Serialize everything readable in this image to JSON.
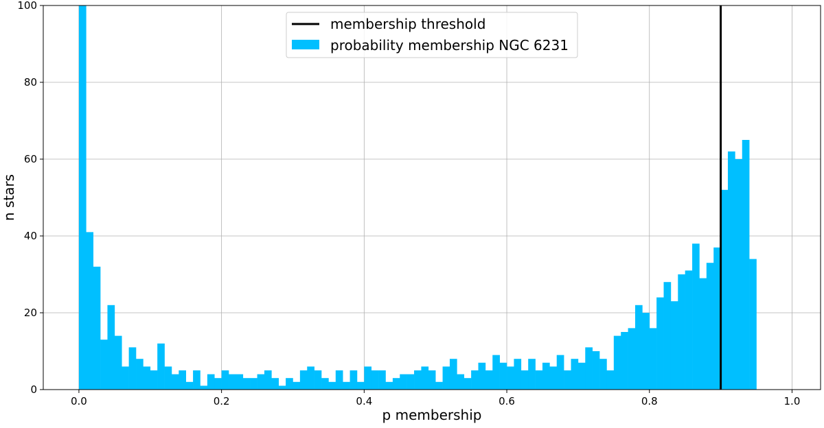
{
  "chart_data": {
    "type": "bar",
    "xlabel": "p membership",
    "ylabel": "n stars",
    "xlim": [
      -0.05,
      1.04
    ],
    "ylim": [
      0,
      100
    ],
    "bin_width": 0.01,
    "grid": true,
    "legend_position": "upper-center",
    "x_ticks": [
      "0.0",
      "0.2",
      "0.4",
      "0.6",
      "0.8",
      "1.0"
    ],
    "y_ticks": [
      "0",
      "20",
      "40",
      "60",
      "80",
      "100"
    ],
    "series": [
      {
        "name": "probability membership NGC 6231",
        "color": "#00bfff",
        "bin_starts": [
          0.0,
          0.01,
          0.02,
          0.03,
          0.04,
          0.05,
          0.06,
          0.07,
          0.08,
          0.09,
          0.1,
          0.11,
          0.12,
          0.13,
          0.14,
          0.15,
          0.16,
          0.17,
          0.18,
          0.19,
          0.2,
          0.21,
          0.22,
          0.23,
          0.24,
          0.25,
          0.26,
          0.27,
          0.28,
          0.29,
          0.3,
          0.31,
          0.32,
          0.33,
          0.34,
          0.35,
          0.36,
          0.37,
          0.38,
          0.39,
          0.4,
          0.41,
          0.42,
          0.43,
          0.44,
          0.45,
          0.46,
          0.47,
          0.48,
          0.49,
          0.5,
          0.51,
          0.52,
          0.53,
          0.54,
          0.55,
          0.56,
          0.57,
          0.58,
          0.59,
          0.6,
          0.61,
          0.62,
          0.63,
          0.64,
          0.65,
          0.66,
          0.67,
          0.68,
          0.69,
          0.7,
          0.71,
          0.72,
          0.73,
          0.74,
          0.75,
          0.76,
          0.77,
          0.78,
          0.79,
          0.8,
          0.81,
          0.82,
          0.83,
          0.84,
          0.85,
          0.86,
          0.87,
          0.88,
          0.89,
          0.9,
          0.91,
          0.92,
          0.93,
          0.94
        ],
        "values": [
          100,
          41,
          32,
          13,
          22,
          14,
          6,
          11,
          8,
          6,
          5,
          12,
          6,
          4,
          5,
          2,
          5,
          1,
          4,
          3,
          5,
          4,
          4,
          3,
          3,
          4,
          5,
          3,
          1,
          3,
          2,
          5,
          6,
          5,
          3,
          2,
          5,
          2,
          5,
          2,
          6,
          5,
          5,
          2,
          3,
          4,
          4,
          5,
          6,
          5,
          2,
          6,
          8,
          4,
          3,
          5,
          7,
          5,
          9,
          7,
          6,
          8,
          5,
          8,
          5,
          7,
          6,
          9,
          5,
          8,
          7,
          11,
          10,
          8,
          5,
          14,
          15,
          16,
          22,
          20,
          16,
          24,
          28,
          23,
          30,
          31,
          38,
          29,
          33,
          37,
          52,
          62,
          60,
          65,
          34
        ]
      },
      {
        "name": "membership threshold",
        "type": "vline",
        "color": "#000000",
        "x": 0.9
      }
    ]
  }
}
